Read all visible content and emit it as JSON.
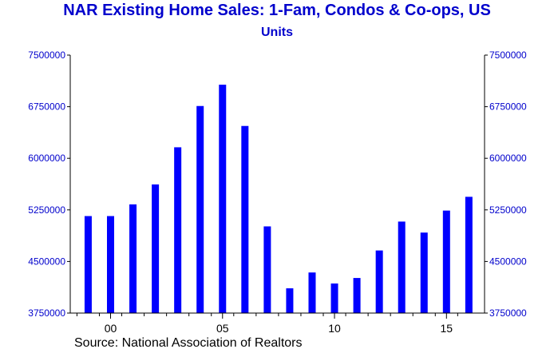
{
  "chart_data": {
    "type": "bar",
    "title": "NAR Existing Home Sales: 1-Fam, Condos & Co-ops, US",
    "subtitle": "Units",
    "source": "Source:  National Association of Realtors",
    "ylim": [
      3750000,
      7500000
    ],
    "y_ticks": [
      3750000,
      4500000,
      5250000,
      6000000,
      6750000,
      7500000
    ],
    "y_tick_labels": [
      "3750000",
      "4500000",
      "5250000",
      "6000000",
      "6750000",
      "7500000"
    ],
    "x_ticks": [
      2000,
      2005,
      2010,
      2015
    ],
    "x_tick_labels": [
      "00",
      "05",
      "10",
      "15"
    ],
    "x": [
      1999,
      2000,
      2001,
      2002,
      2003,
      2004,
      2005,
      2006,
      2007,
      2008,
      2009,
      2010,
      2011,
      2012,
      2013,
      2014,
      2015,
      2016
    ],
    "values": [
      5160000,
      5160000,
      5330000,
      5620000,
      6160000,
      6760000,
      7070000,
      6470000,
      5010000,
      4110000,
      4340000,
      4180000,
      4260000,
      4660000,
      5080000,
      4920000,
      5240000,
      5440000
    ],
    "bar_color": "#0000ff",
    "axis_color": "#000000",
    "grid": false
  }
}
